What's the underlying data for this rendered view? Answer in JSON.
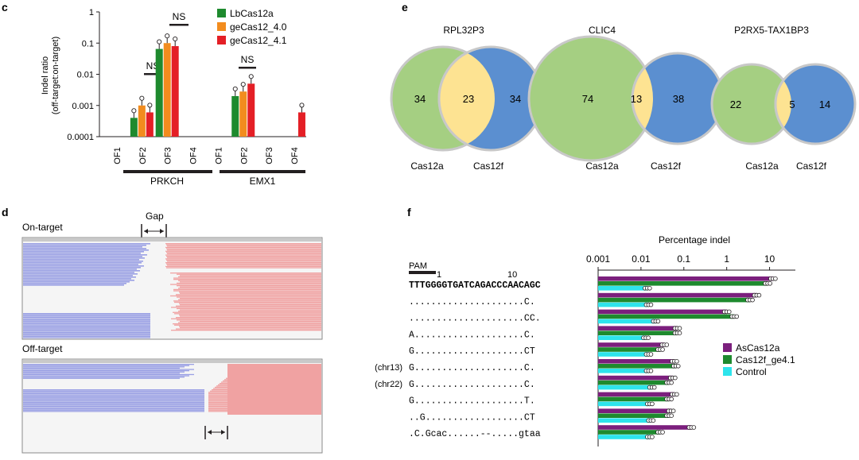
{
  "panels": {
    "c": "c",
    "d": "d",
    "e": "e",
    "f": "f"
  },
  "chart_data": [
    {
      "type": "bar",
      "panel": "c",
      "ylabel": "Indel ratio (off-target:on-target)",
      "ylabel_line1": "Indel ratio",
      "ylabel_line2": "(off-target:on-target)",
      "yscale": "log",
      "ylim": [
        0.0001,
        1
      ],
      "yticks": [
        "1",
        "0.1",
        "0.01",
        "0.001",
        "0.0001"
      ],
      "categories": [
        "OF1",
        "OF2",
        "OF3",
        "OF4",
        "OF1",
        "OF2",
        "OF3",
        "OF4"
      ],
      "groups": [
        "PRKCH",
        "EMX1"
      ],
      "series": [
        {
          "name": "LbCas12a",
          "color": "#1e8a2e",
          "values": [
            null,
            0.0004,
            0.065,
            null,
            null,
            0.002,
            null,
            null
          ]
        },
        {
          "name": "geCas12_4.0",
          "color": "#f28c1e",
          "values": [
            null,
            0.001,
            0.1,
            null,
            null,
            0.0028,
            null,
            null
          ]
        },
        {
          "name": "geCas12_4.1",
          "color": "#e41f26",
          "values": [
            null,
            0.0006,
            0.08,
            null,
            null,
            0.005,
            null,
            0.0006
          ]
        }
      ],
      "annotations": [
        "NS",
        "NS",
        "NS"
      ]
    },
    {
      "type": "venn",
      "panel": "e",
      "legend": [
        "Cas12a",
        "Cas12f"
      ],
      "sets": [
        {
          "title": "RPL32P3",
          "left": 34,
          "overlap": 23,
          "right": 34,
          "left_label": "Cas12a",
          "right_label": "Cas12f"
        },
        {
          "title": "CLIC4",
          "left": 74,
          "overlap": 13,
          "right": 38,
          "left_label": "Cas12a",
          "right_label": "Cas12f"
        },
        {
          "title": "P2RX5-TAX1BP3",
          "left": 22,
          "overlap": 5,
          "right": 14,
          "left_label": "Cas12a",
          "right_label": "Cas12f"
        }
      ]
    },
    {
      "type": "bar",
      "orientation": "horizontal",
      "panel": "f",
      "xlabel": "Percentage indel",
      "xscale": "log",
      "xlim": [
        0.001,
        30
      ],
      "xticks": [
        "0.001",
        "0.01",
        "0.1",
        "1",
        "10"
      ],
      "pam_label": "PAM",
      "pos_labels": [
        "1",
        "10"
      ],
      "categories": [
        "TTTGGGGTGATCAGACCCAACAGC",
        ".....................C.",
        ".....................CC.",
        "A....................C.",
        "G....................CT",
        "G....................C.",
        "G....................C.",
        "G....................T.",
        "..G..................CT",
        ".C.Gcac......--.....gtaa"
      ],
      "row_tags": [
        "",
        "",
        "",
        "",
        "",
        "(chr13)",
        "(chr22)",
        "",
        "",
        ""
      ],
      "series": [
        {
          "name": "AsCas12a",
          "color": "#7b1f7d",
          "values": [
            12,
            5,
            1,
            0.07,
            0.035,
            0.06,
            0.055,
            0.06,
            0.05,
            0.15
          ]
        },
        {
          "name": "Cas12f_ge4.1",
          "color": "#1e8a2e",
          "values": [
            9,
            3.5,
            1.5,
            0.07,
            0.028,
            0.065,
            0.045,
            0.045,
            0.045,
            0.028
          ]
        },
        {
          "name": "Control",
          "color": "#2ee4ec",
          "values": [
            0.014,
            0.015,
            0.022,
            0.013,
            0.015,
            0.015,
            0.018,
            0.016,
            0.017,
            0.016
          ]
        }
      ]
    }
  ],
  "panel_d": {
    "on_target_label": "On-target",
    "off_target_label": "Off-target",
    "gap_label": "Gap",
    "read_colors": {
      "left": "#9aa0e4",
      "right": "#f0a2a2"
    }
  }
}
